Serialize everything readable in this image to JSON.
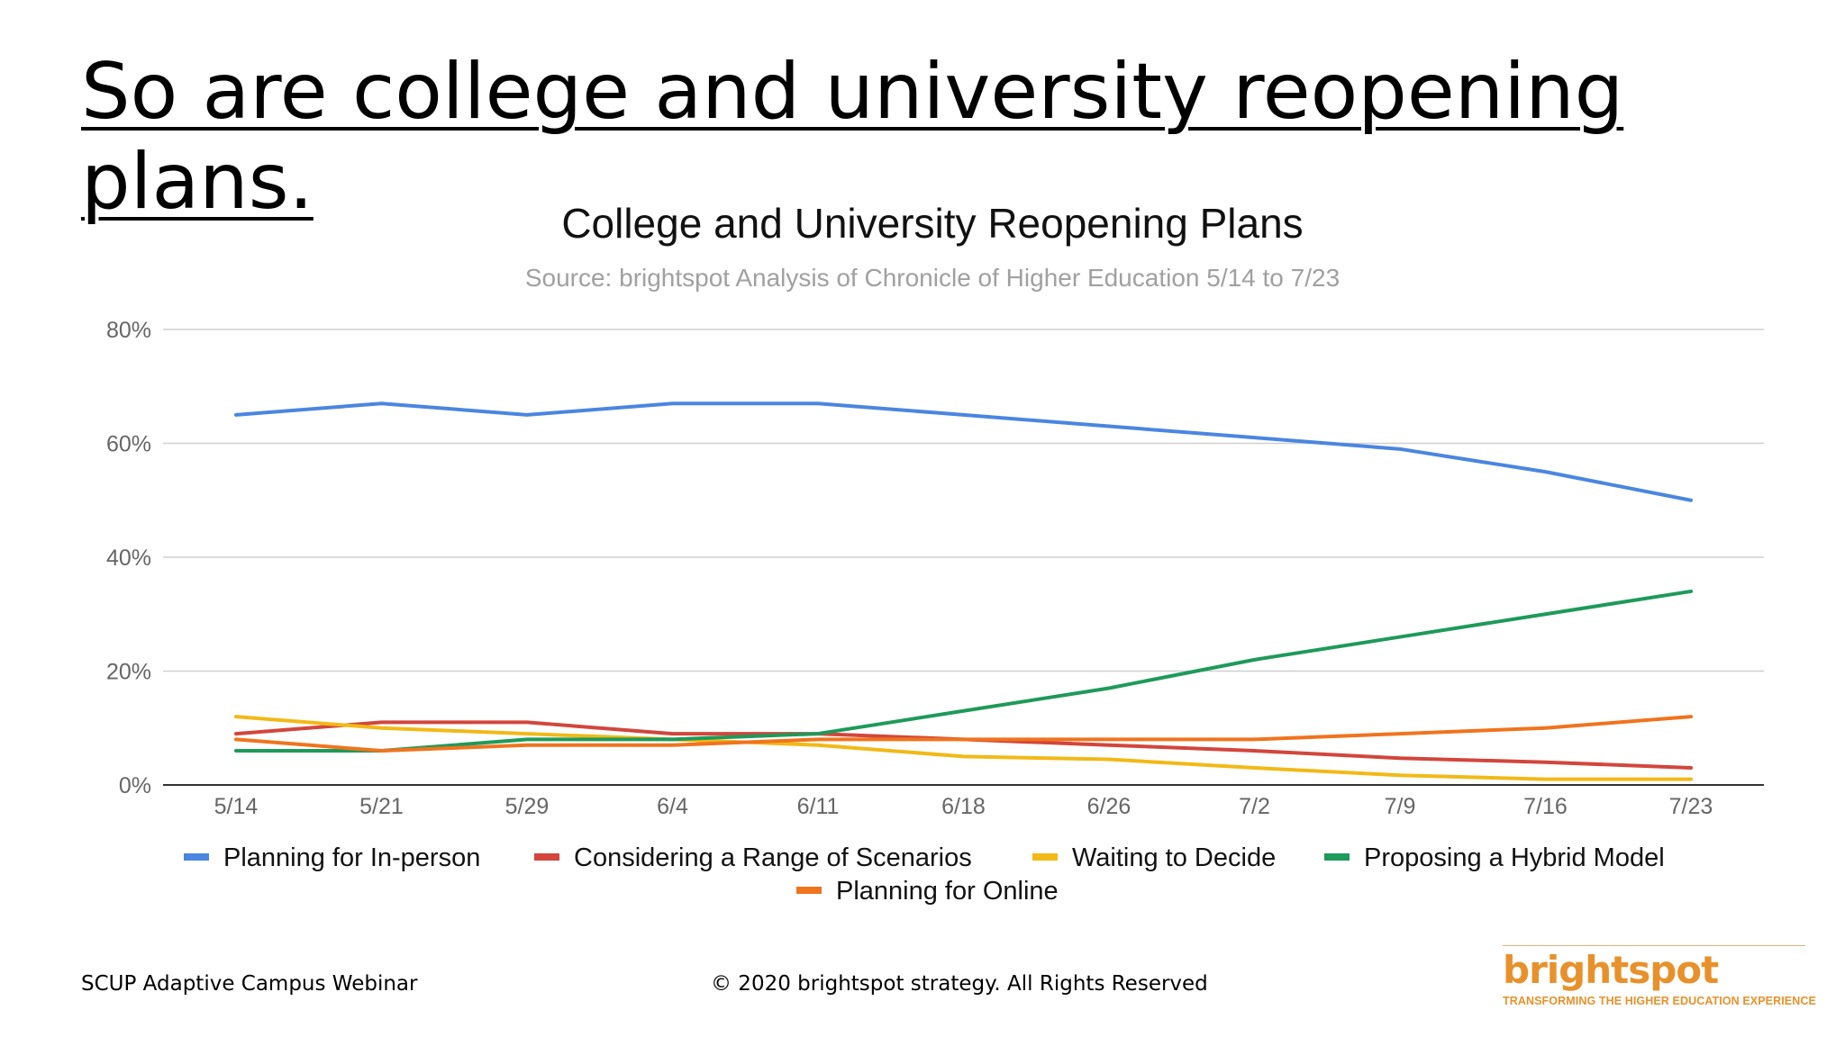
{
  "slide": {
    "title": "So are college and university reopening plans.",
    "footer_left": "SCUP Adaptive Campus Webinar",
    "footer_center": "© 2020 brightspot strategy. All Rights Reserved",
    "logo_word": "brightspot",
    "logo_tagline": "TRANSFORMING THE HIGHER EDUCATION EXPERIENCE"
  },
  "chart_data": {
    "type": "line",
    "title": "College and University Reopening Plans",
    "subtitle": "Source: brightspot Analysis of Chronicle of Higher Education 5/14 to 7/23",
    "categories": [
      "5/14",
      "5/21",
      "5/29",
      "6/4",
      "6/11",
      "6/18",
      "6/26",
      "7/2",
      "7/9",
      "7/16",
      "7/23"
    ],
    "ylim": [
      0,
      80
    ],
    "yticks": [
      0,
      20,
      40,
      60,
      80
    ],
    "ytick_labels": [
      "0%",
      "20%",
      "40%",
      "60%",
      "80%"
    ],
    "grid": true,
    "legend_position": "bottom",
    "series": [
      {
        "name": "Planning for In-person",
        "color": "#4a86e0",
        "values": [
          65,
          67,
          65,
          67,
          67,
          65,
          63,
          61,
          59,
          55,
          50
        ]
      },
      {
        "name": "Considering a Range of Scenarios",
        "color": "#d2463c",
        "values": [
          9,
          11,
          11,
          9,
          9,
          8,
          7,
          6,
          4.7,
          4,
          3
        ]
      },
      {
        "name": "Waiting to Decide",
        "color": "#f2b916",
        "values": [
          12,
          10,
          9,
          8,
          7,
          5,
          4.5,
          3,
          1.7,
          1,
          1
        ]
      },
      {
        "name": "Proposing a Hybrid Model",
        "color": "#1e9a5a",
        "values": [
          6,
          6,
          8,
          8,
          9,
          13,
          17,
          22,
          26,
          30,
          34
        ]
      },
      {
        "name": "Planning for Online",
        "color": "#f0741e",
        "values": [
          8,
          6,
          7,
          7,
          8,
          8,
          8,
          8,
          9,
          10,
          12
        ]
      }
    ]
  }
}
